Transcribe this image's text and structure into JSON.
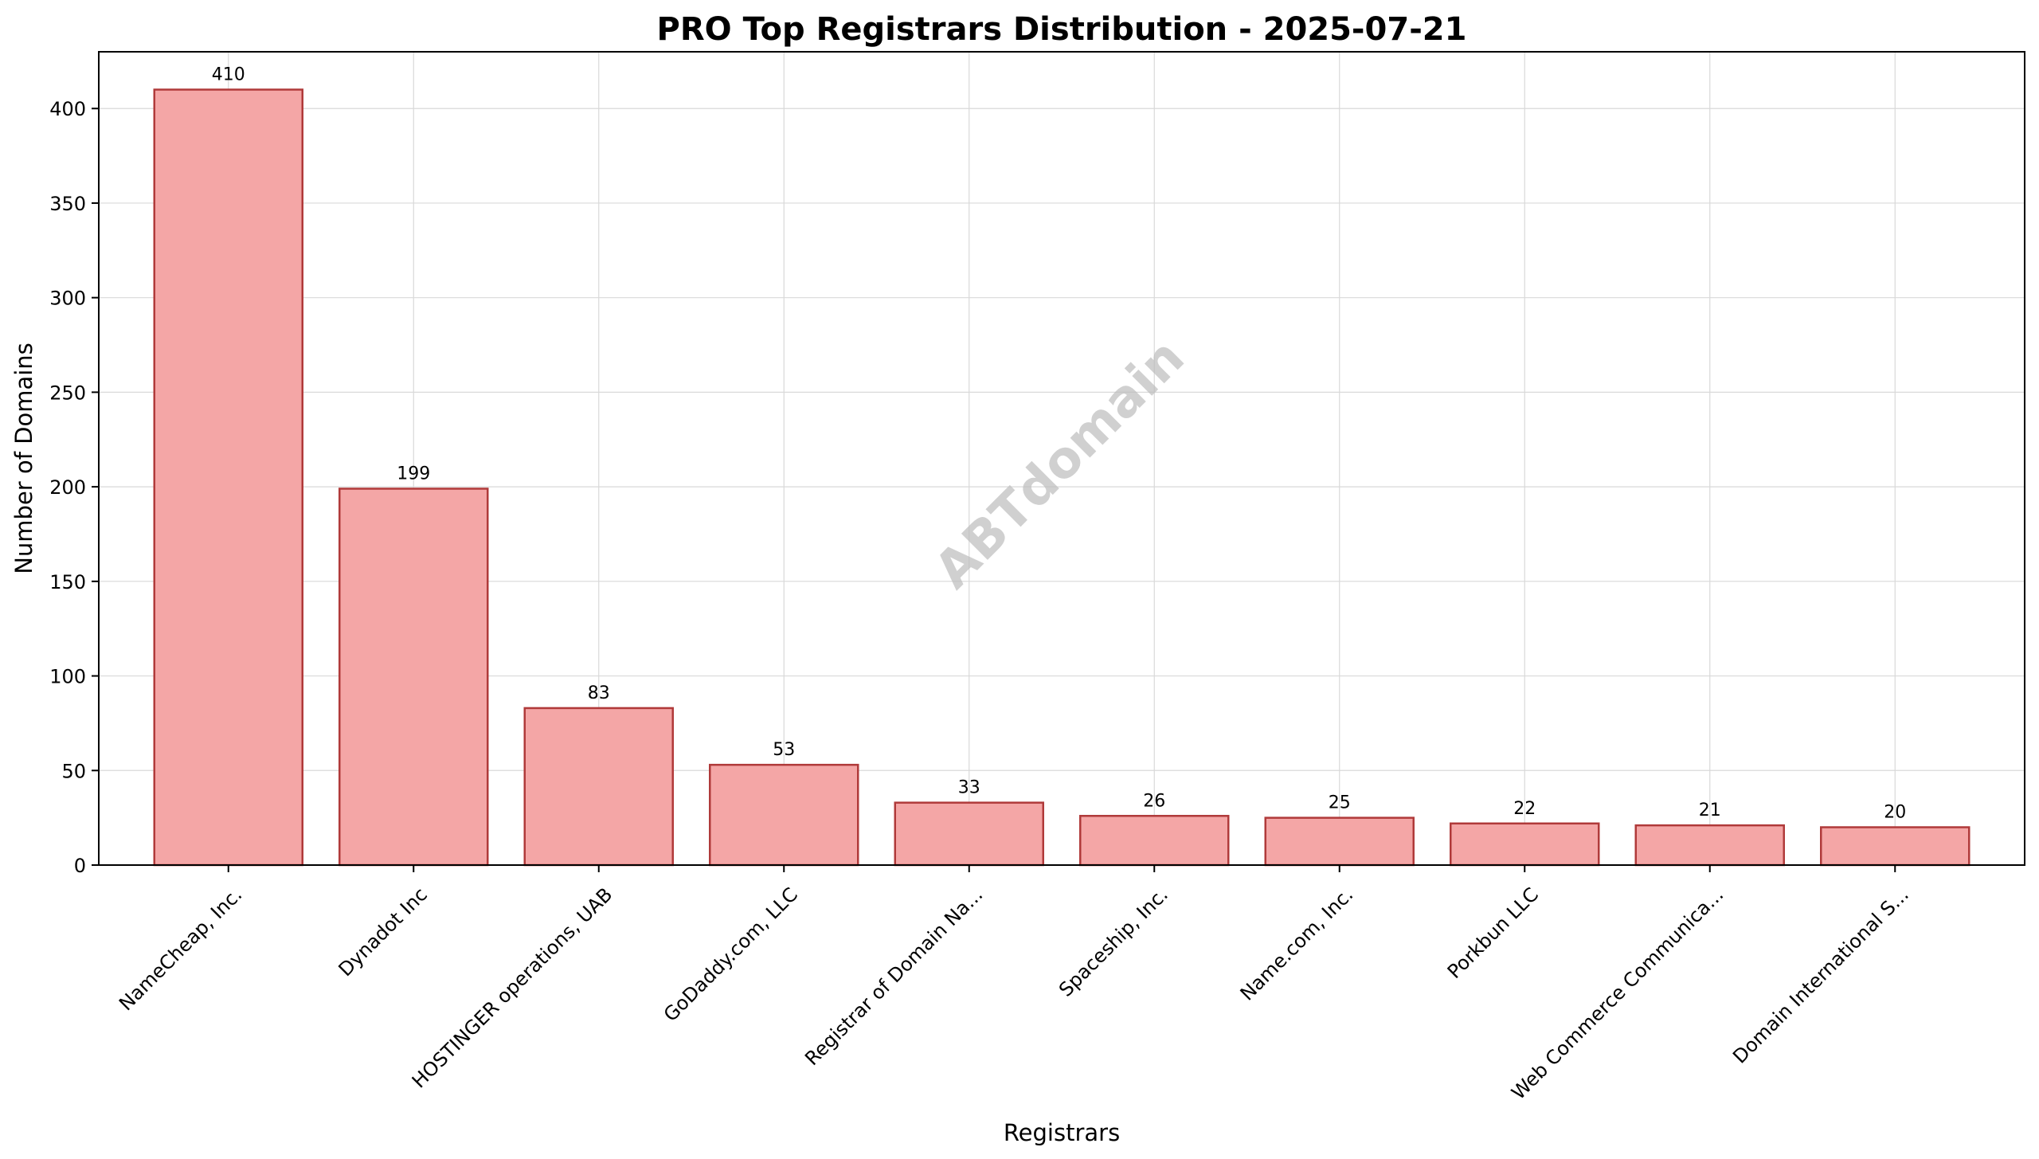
{
  "chart_data": {
    "type": "bar",
    "title": "PRO Top Registrars Distribution - 2025-07-21",
    "xlabel": "Registrars",
    "ylabel": "Number of Domains",
    "categories": [
      "NameCheap, Inc.",
      "Dynadot Inc",
      "HOSTINGER operations, UAB",
      "GoDaddy.com, LLC",
      "Registrar of Domain Na...",
      "Spaceship, Inc.",
      "Name.com, Inc.",
      "Porkbun LLC",
      "Web Commerce Communica...",
      "Domain International S..."
    ],
    "values": [
      410,
      199,
      83,
      53,
      33,
      26,
      25,
      22,
      21,
      20
    ],
    "value_labels": [
      "410",
      "199",
      "83",
      "53",
      "33",
      "26",
      "25",
      "22",
      "21",
      "20"
    ],
    "ylim": [
      0,
      430
    ],
    "yticks": [
      0,
      50,
      100,
      150,
      200,
      250,
      300,
      350,
      400
    ],
    "ytick_labels": [
      "0",
      "50",
      "100",
      "150",
      "200",
      "250",
      "300",
      "350",
      "400"
    ],
    "grid": true,
    "legend": "none",
    "bar_fill_color": "#f4a6a6",
    "bar_edge_color": "#b03a3a",
    "watermark": "ABTdomain"
  }
}
